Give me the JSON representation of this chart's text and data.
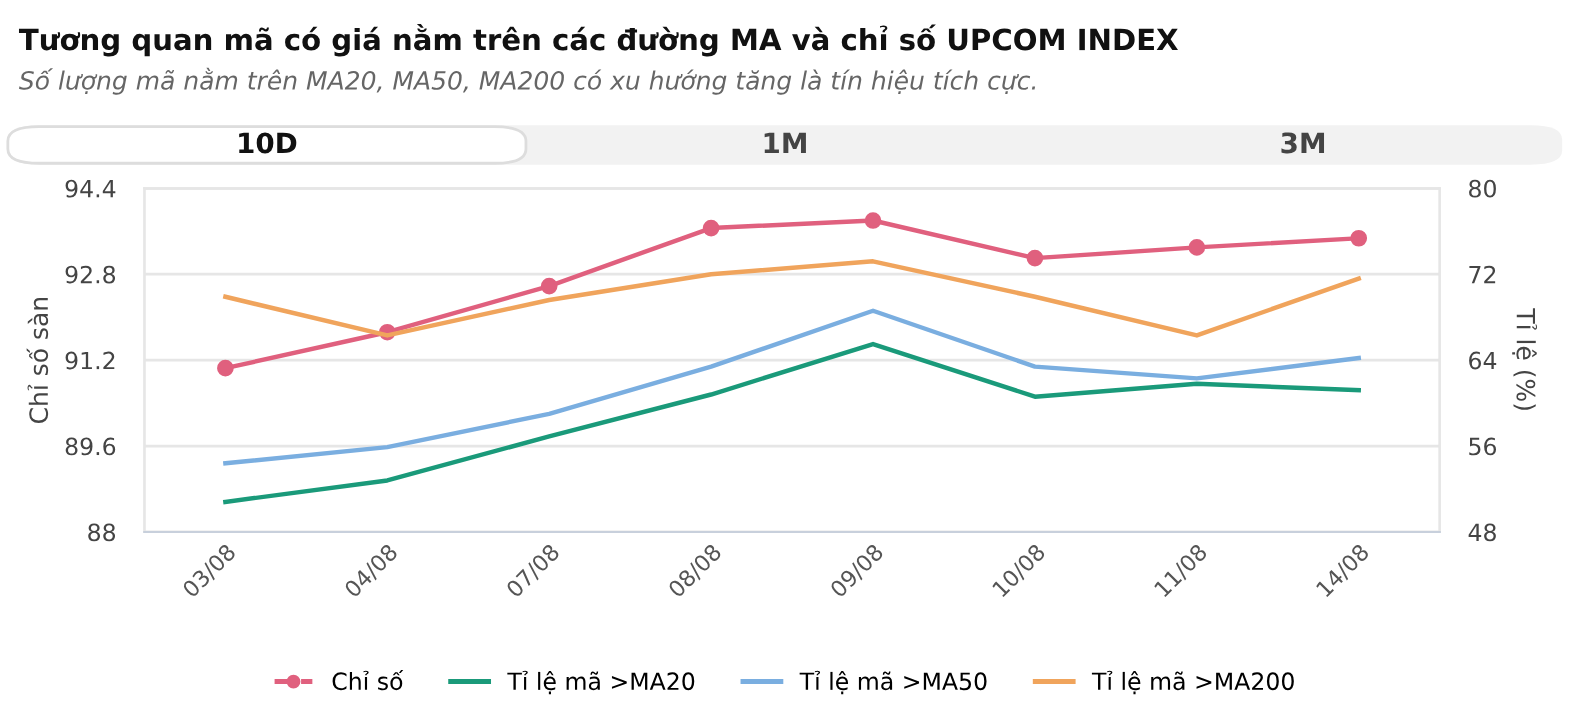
{
  "chart_data": {
    "type": "line",
    "title": "Tương quan mã có giá nằm trên các đường MA và chỉ số UPCOM INDEX",
    "subtitle": "Số lượng mã nằm trên MA20, MA50, MA200 có xu hướng tăng là tín hiệu tích cực.",
    "annotations": [
      "10D",
      "1M",
      "3M"
    ],
    "ylabel": "Chỉ số sàn",
    "y2label": "Tỉ lệ (%)",
    "categories": [
      "03/08",
      "04/08",
      "07/08",
      "08/08",
      "09/08",
      "10/08",
      "11/08",
      "14/08"
    ],
    "series": [
      {
        "name": "Chỉ số",
        "color": "#e0607e",
        "marker": "circle",
        "values": [
          91.05,
          91.72,
          92.58,
          93.66,
          93.8,
          93.1,
          93.3,
          93.47
        ]
      },
      {
        "name": "Tỉ lệ mã >MA20",
        "color": "#1a9a7a",
        "axis": "y2",
        "values": [
          50.8,
          52.8,
          56.9,
          60.8,
          65.5,
          60.6,
          61.8,
          61.2
        ]
      },
      {
        "name": "Tỉ lệ mã >MA50",
        "color": "#7aaee0",
        "axis": "y2",
        "values": [
          54.4,
          55.9,
          59.0,
          63.4,
          68.6,
          63.4,
          62.3,
          64.2
        ]
      },
      {
        "name": "Tỉ lệ mã >MA200",
        "color": "#f0a45c",
        "axis": "y2",
        "values": [
          69.9,
          66.3,
          69.6,
          72.0,
          73.2,
          69.9,
          66.3,
          71.6
        ]
      }
    ],
    "ylim": [
      88,
      94.4
    ],
    "yticks": [
      88,
      89.6,
      91.2,
      92.8,
      94.4
    ],
    "y2lim": [
      48,
      80
    ],
    "y2ticks": [
      48,
      56,
      64,
      72,
      80
    ],
    "grid": "y",
    "legend": "bottom",
    "line_style": "solid"
  }
}
